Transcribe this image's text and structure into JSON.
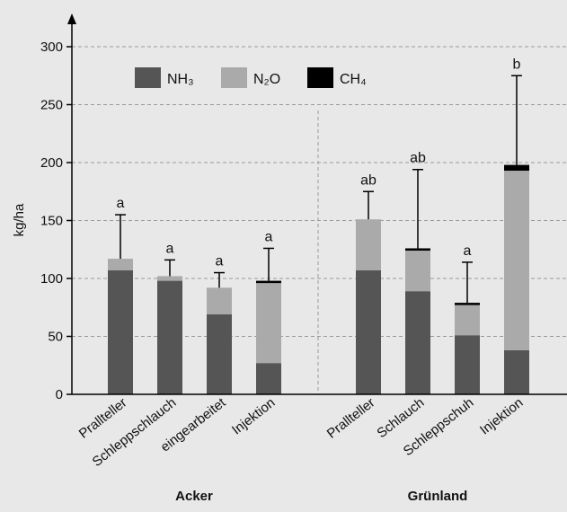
{
  "chart_data": {
    "type": "bar",
    "stacked": true,
    "ylabel": "kg/ha",
    "ylim": [
      0,
      300
    ],
    "yticks": [
      0,
      50,
      100,
      150,
      200,
      250,
      300
    ],
    "grid": "dashed horizontal",
    "legend_position": "top-left",
    "groups": [
      "Acker",
      "Grünland"
    ],
    "categories": [
      {
        "label": "Prallteller",
        "group": "Acker"
      },
      {
        "label": "Schleppschlauch",
        "group": "Acker"
      },
      {
        "label": "eingearbeitet",
        "group": "Acker"
      },
      {
        "label": "Injektion",
        "group": "Acker"
      },
      {
        "label": "Prallteller",
        "group": "Grünland"
      },
      {
        "label": "Schlauch",
        "group": "Grünland"
      },
      {
        "label": "Schleppschuh",
        "group": "Grünland"
      },
      {
        "label": "Injektion",
        "group": "Grünland"
      }
    ],
    "series": [
      {
        "name": "NH₃",
        "color": "#555555",
        "values": [
          107,
          98,
          69,
          27,
          107,
          89,
          51,
          38
        ]
      },
      {
        "name": "N₂O",
        "color": "#aaaaaa",
        "values": [
          10,
          4,
          23,
          69,
          44,
          35,
          26,
          155
        ]
      },
      {
        "name": "CH₄",
        "color": "#000000",
        "values": [
          0,
          0,
          0,
          2,
          0,
          2,
          2,
          5
        ]
      }
    ],
    "error_upper": [
      155,
      116,
      105,
      126,
      175,
      194,
      114,
      275
    ],
    "significance_letters": [
      "a",
      "a",
      "a",
      "a",
      "ab",
      "ab",
      "a",
      "b"
    ]
  }
}
